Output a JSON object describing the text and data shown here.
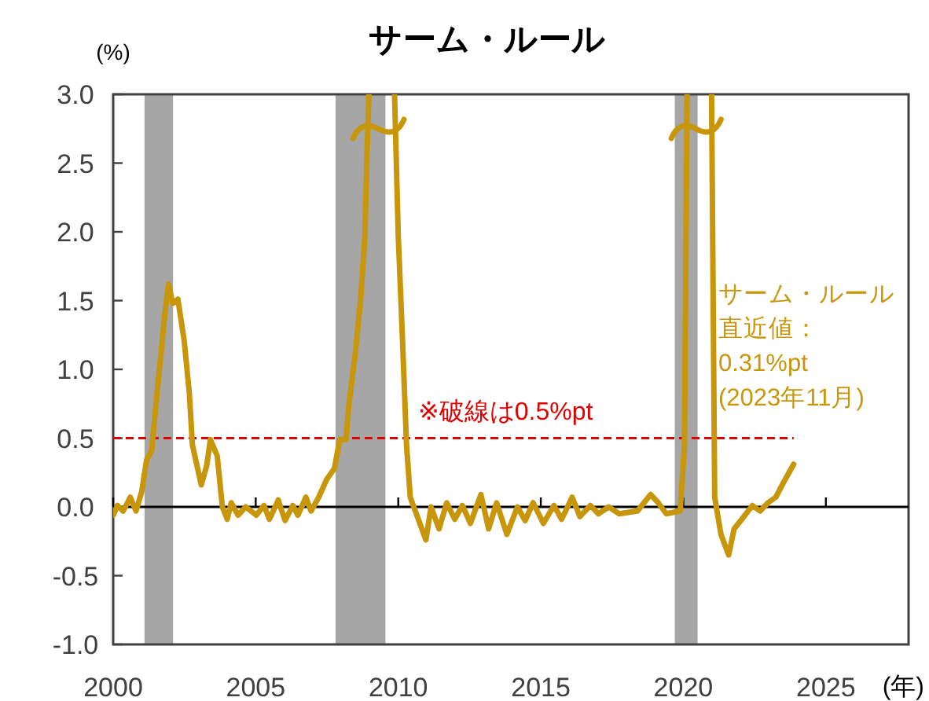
{
  "chart_data": {
    "type": "line",
    "title": "サーム・ルール",
    "ylabel": "(%)",
    "xlabel": "(年)",
    "color": "#c8960a",
    "grid": false,
    "line_style": "solid",
    "xlim": [
      2000,
      2027.9
    ],
    "xticks": [
      2000,
      2005,
      2010,
      2015,
      2020,
      2025
    ],
    "ylim": [
      -1.0,
      3.0
    ],
    "yticks": [
      {
        "value": -1,
        "label": "-1.0"
      },
      {
        "value": -0.5,
        "label": "-0.5"
      },
      {
        "value": 0,
        "label": "0.0"
      },
      {
        "value": 0.5,
        "label": "0.5"
      },
      {
        "value": 1,
        "label": "1.0"
      },
      {
        "value": 1.5,
        "label": "1.5"
      },
      {
        "value": 2,
        "label": "2.0"
      },
      {
        "value": 2.5,
        "label": "2.5"
      },
      {
        "value": 3,
        "label": "3.0"
      }
    ],
    "x": [
      2000.0,
      2000.15,
      2000.35,
      2000.6,
      2000.8,
      2001.0,
      2001.17,
      2001.35,
      2001.54,
      2001.69,
      2001.81,
      2001.94,
      2002.09,
      2002.27,
      2002.49,
      2002.67,
      2002.78,
      2003.09,
      2003.28,
      2003.41,
      2003.65,
      2003.83,
      2004.0,
      2004.14,
      2004.38,
      2004.65,
      2005.02,
      2005.29,
      2005.48,
      2005.79,
      2006.03,
      2006.3,
      2006.48,
      2006.76,
      2006.94,
      2007.21,
      2007.49,
      2007.76,
      2007.95,
      2008.17,
      2008.26,
      2008.5,
      2008.68,
      2008.83,
      2008.9,
      2008.97,
      2009.87,
      2010.0,
      2010.15,
      2010.29,
      2010.42,
      2010.97,
      2011.15,
      2011.43,
      2011.7,
      2011.98,
      2012.25,
      2012.53,
      2012.9,
      2013.17,
      2013.45,
      2013.81,
      2014.18,
      2014.45,
      2014.73,
      2015.09,
      2015.46,
      2015.73,
      2016.1,
      2016.37,
      2016.74,
      2017.02,
      2017.38,
      2017.75,
      2018.39,
      2018.85,
      2019.12,
      2019.4,
      2019.89,
      2020.04,
      2020.13,
      2020.99,
      2021.1,
      2021.32,
      2021.59,
      2021.78,
      2022.05,
      2022.42,
      2022.69,
      2022.97,
      2023.24,
      2023.52,
      2023.87
    ],
    "values": [
      -0.06,
      0.01,
      -0.03,
      0.07,
      -0.03,
      0.11,
      0.34,
      0.41,
      0.83,
      1.14,
      1.4,
      1.62,
      1.48,
      1.51,
      1.21,
      0.83,
      0.45,
      0.16,
      0.3,
      0.49,
      0.37,
      0.0,
      -0.09,
      0.03,
      -0.06,
      0.0,
      -0.06,
      0.01,
      -0.09,
      0.05,
      -0.1,
      0.01,
      -0.06,
      0.07,
      -0.03,
      0.07,
      0.2,
      0.28,
      0.49,
      0.49,
      0.73,
      1.13,
      1.51,
      1.97,
      2.54,
      3.0,
      3.0,
      1.97,
      1.21,
      0.45,
      0.07,
      -0.24,
      0.0,
      -0.16,
      0.03,
      -0.09,
      0.01,
      -0.12,
      0.09,
      -0.16,
      0.03,
      -0.2,
      0.0,
      -0.1,
      0.03,
      -0.12,
      0.01,
      -0.09,
      0.07,
      -0.07,
      0.01,
      -0.05,
      0.0,
      -0.05,
      -0.03,
      0.09,
      0.03,
      -0.05,
      -0.03,
      0.45,
      3.0,
      3.0,
      0.07,
      -0.2,
      -0.35,
      -0.16,
      -0.09,
      0.01,
      -0.03,
      0.03,
      0.07,
      0.18,
      0.31
    ],
    "bands": [
      {
        "axis": "x",
        "from": 2001.1,
        "to": 2002.1,
        "color": "#a6a6a6"
      },
      {
        "axis": "x",
        "from": 2007.8,
        "to": 2009.55,
        "color": "#a6a6a6"
      },
      {
        "axis": "x",
        "from": 2019.7,
        "to": 2020.5,
        "color": "#a6a6a6"
      }
    ],
    "ref_lines": [
      {
        "axis": "y",
        "value": 0.5,
        "color": "#e00000",
        "line_style": "dashed"
      }
    ],
    "annotations": [
      "※破線は0.5%pt",
      "サーム・ルール",
      "直近値：",
      "0.31%pt",
      "(2023年11月)"
    ]
  }
}
